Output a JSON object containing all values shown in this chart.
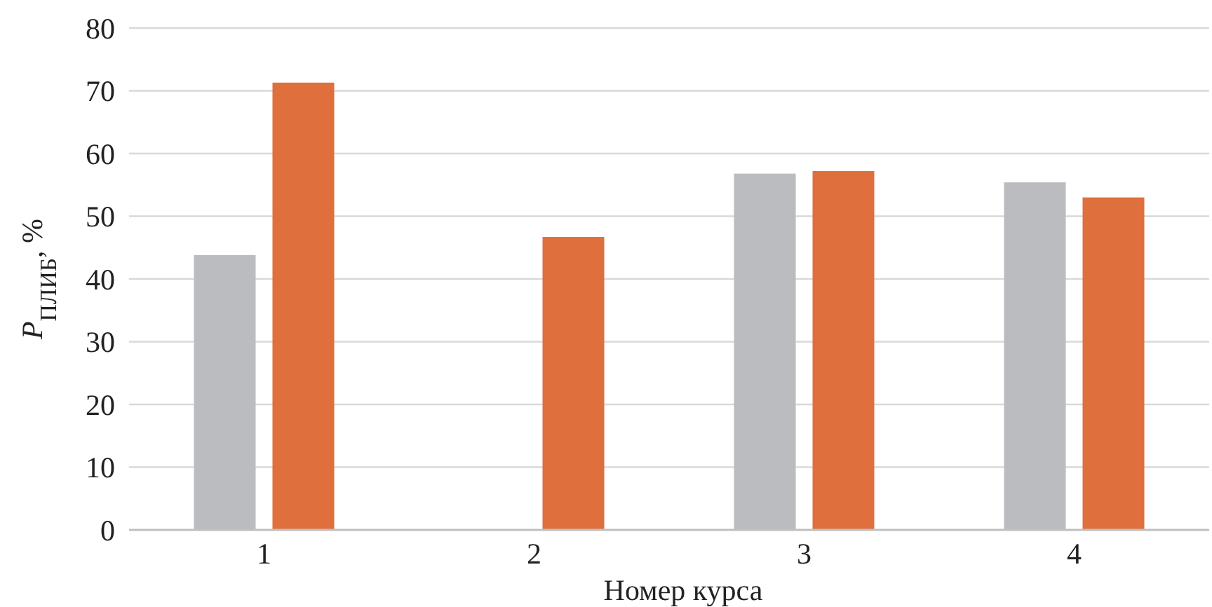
{
  "chart_data": {
    "type": "bar",
    "xlabel": "Номер курса",
    "ylabel": "P$_{ПЛИБ}$, %",
    "categories": [
      "1",
      "2",
      "3",
      "4"
    ],
    "series": [
      {
        "color": "#bbbcc0",
        "values": [
          43.8,
          null,
          56.8,
          55.4
        ]
      },
      {
        "color": "#df6f3d",
        "values": [
          71.3,
          46.7,
          57.2,
          53.0
        ]
      }
    ],
    "ylim": [
      0,
      80
    ],
    "yticks": [
      0,
      10,
      20,
      30,
      40,
      50,
      60,
      70,
      80
    ],
    "grid": "y"
  }
}
